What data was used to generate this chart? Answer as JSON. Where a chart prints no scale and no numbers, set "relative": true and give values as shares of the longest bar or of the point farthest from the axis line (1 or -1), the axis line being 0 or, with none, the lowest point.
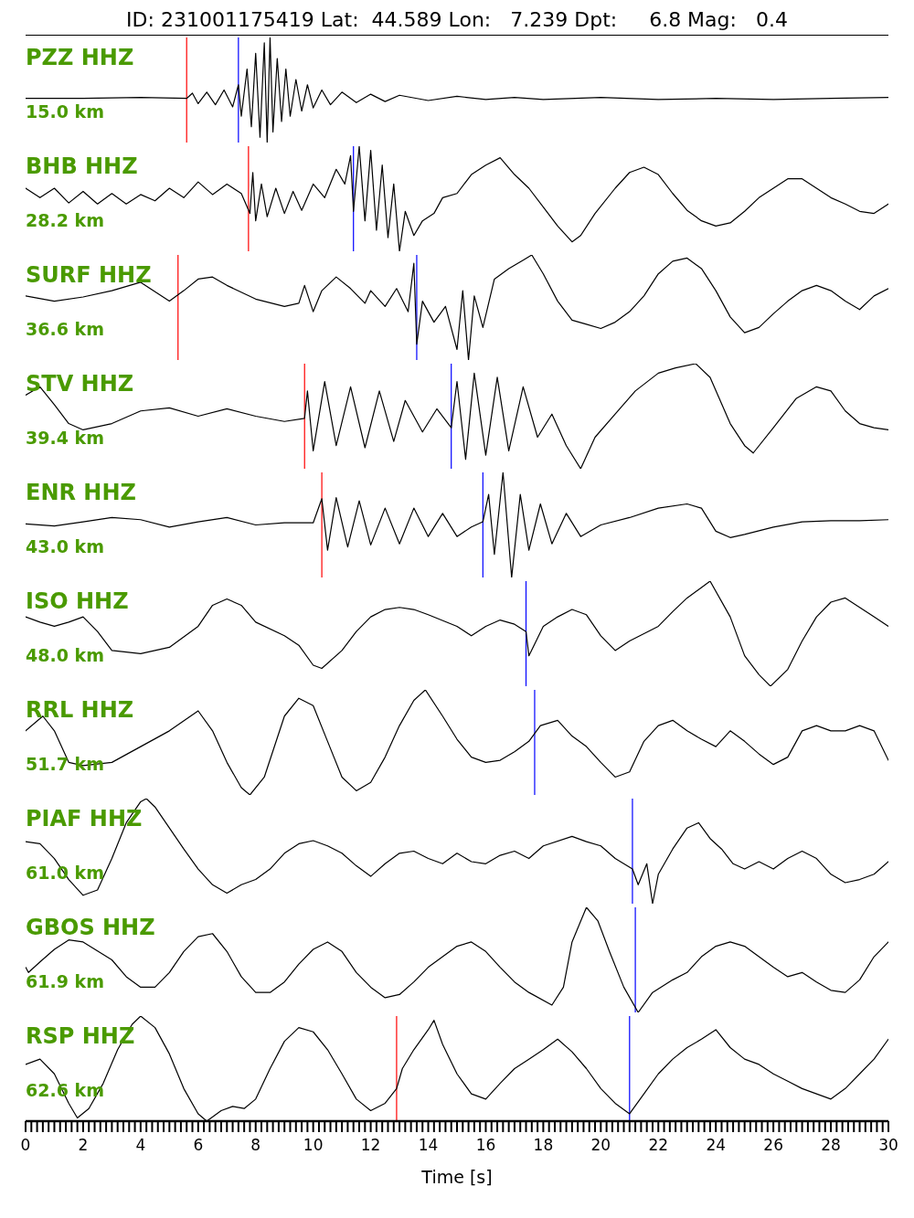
{
  "chart_data": [
    {
      "type": "line",
      "title": "ID: 231001175419 Lat:  44.589 Lon:   7.239 Dpt:     6.8 Mag:   0.4",
      "annotations": [
        "PZZ HHZ",
        "15.0 km"
      ],
      "relative": true,
      "color": "#000000",
      "xlim": [
        0,
        30
      ],
      "tick_labels": false,
      "ref_lines": [
        {
          "axis": "x",
          "value": 5.6,
          "color": "#ff0000"
        },
        {
          "axis": "x",
          "value": 7.4,
          "color": "#0000ff"
        }
      ],
      "x": [
        0,
        2,
        4,
        5.6,
        5.8,
        6.0,
        6.3,
        6.6,
        6.9,
        7.2,
        7.4,
        7.5,
        7.7,
        7.85,
        8.0,
        8.15,
        8.3,
        8.4,
        8.5,
        8.6,
        8.75,
        8.9,
        9.05,
        9.2,
        9.4,
        9.6,
        9.8,
        10.0,
        10.3,
        10.6,
        11,
        11.5,
        12,
        12.5,
        13,
        14,
        15,
        16,
        17,
        18,
        20,
        22,
        24,
        26,
        28,
        30
      ],
      "values": [
        0.42,
        0.42,
        0.43,
        0.42,
        0.47,
        0.37,
        0.48,
        0.36,
        0.5,
        0.34,
        0.55,
        0.25,
        0.7,
        0.15,
        0.85,
        0.05,
        0.95,
        0,
        1,
        0.1,
        0.8,
        0.2,
        0.7,
        0.25,
        0.6,
        0.3,
        0.55,
        0.33,
        0.5,
        0.36,
        0.48,
        0.38,
        0.46,
        0.39,
        0.45,
        0.4,
        0.44,
        0.41,
        0.43,
        0.41,
        0.43,
        0.41,
        0.42,
        0.41,
        0.42,
        0.43
      ]
    },
    {
      "type": "line",
      "annotations": [
        "BHB HHZ",
        "28.2 km"
      ],
      "relative": true,
      "color": "#000000",
      "xlim": [
        0,
        30
      ],
      "tick_labels": false,
      "ref_lines": [
        {
          "axis": "x",
          "value": 7.75,
          "color": "#ff0000"
        },
        {
          "axis": "x",
          "value": 11.4,
          "color": "#0000ff"
        }
      ],
      "x": [
        0,
        0.5,
        1,
        1.5,
        2,
        2.5,
        3,
        3.5,
        4,
        4.5,
        5,
        5.5,
        6,
        6.5,
        7,
        7.5,
        7.8,
        7.9,
        8.0,
        8.2,
        8.4,
        8.7,
        9.0,
        9.3,
        9.6,
        10,
        10.4,
        10.8,
        11.1,
        11.3,
        11.4,
        11.6,
        11.8,
        12,
        12.2,
        12.4,
        12.6,
        12.8,
        13.0,
        13.2,
        13.5,
        13.8,
        14.2,
        14.5,
        15,
        15.5,
        16,
        16.5,
        17,
        17.5,
        18,
        18.5,
        19,
        19.3,
        19.8,
        20.5,
        21,
        21.5,
        22,
        22.5,
        23,
        23.5,
        24,
        24.5,
        25,
        25.5,
        26,
        26.5,
        27,
        27.5,
        28,
        28.5,
        29,
        29.5,
        30
      ],
      "values": [
        0.6,
        0.51,
        0.6,
        0.46,
        0.57,
        0.45,
        0.55,
        0.45,
        0.54,
        0.48,
        0.6,
        0.51,
        0.66,
        0.54,
        0.64,
        0.55,
        0.36,
        0.75,
        0.29,
        0.64,
        0.33,
        0.6,
        0.36,
        0.57,
        0.39,
        0.64,
        0.51,
        0.78,
        0.64,
        0.91,
        0.38,
        1,
        0.29,
        0.96,
        0.2,
        0.82,
        0.13,
        0.64,
        0,
        0.38,
        0.15,
        0.29,
        0.36,
        0.51,
        0.55,
        0.73,
        0.82,
        0.89,
        0.73,
        0.6,
        0.42,
        0.24,
        0.09,
        0.15,
        0.36,
        0.6,
        0.75,
        0.8,
        0.73,
        0.55,
        0.39,
        0.29,
        0.24,
        0.27,
        0.38,
        0.51,
        0.6,
        0.69,
        0.69,
        0.6,
        0.51,
        0.45,
        0.38,
        0.36,
        0.45
      ]
    },
    {
      "type": "line",
      "annotations": [
        "SURF HHZ",
        "36.6 km"
      ],
      "relative": true,
      "color": "#000000",
      "xlim": [
        0,
        30
      ],
      "tick_labels": false,
      "ref_lines": [
        {
          "axis": "x",
          "value": 5.3,
          "color": "#ff0000"
        },
        {
          "axis": "x",
          "value": 13.6,
          "color": "#0000ff"
        }
      ],
      "x": [
        0,
        1,
        2,
        3,
        4,
        5,
        5.5,
        6,
        6.5,
        7,
        8,
        9,
        9.5,
        9.7,
        10,
        10.3,
        10.8,
        11.3,
        11.8,
        12,
        12.5,
        12.9,
        13.3,
        13.5,
        13.6,
        13.8,
        14.2,
        14.6,
        15,
        15.2,
        15.4,
        15.6,
        15.9,
        16.3,
        16.8,
        17.3,
        17.6,
        18,
        18.5,
        19,
        19.5,
        20,
        20.5,
        21,
        21.5,
        22,
        22.5,
        23,
        23.5,
        24,
        24.5,
        25,
        25.5,
        26,
        26.5,
        27,
        27.5,
        28,
        28.5,
        29,
        29.5,
        30
      ],
      "values": [
        0.61,
        0.56,
        0.6,
        0.66,
        0.74,
        0.56,
        0.66,
        0.77,
        0.79,
        0.71,
        0.58,
        0.51,
        0.54,
        0.71,
        0.46,
        0.66,
        0.79,
        0.68,
        0.54,
        0.66,
        0.51,
        0.68,
        0.46,
        0.92,
        0.15,
        0.56,
        0.36,
        0.51,
        0.1,
        0.66,
        0,
        0.61,
        0.31,
        0.77,
        0.87,
        0.95,
        1,
        0.82,
        0.56,
        0.38,
        0.34,
        0.3,
        0.36,
        0.46,
        0.61,
        0.82,
        0.94,
        0.97,
        0.87,
        0.66,
        0.41,
        0.26,
        0.31,
        0.44,
        0.56,
        0.66,
        0.71,
        0.66,
        0.56,
        0.48,
        0.61,
        0.68
      ]
    },
    {
      "type": "line",
      "annotations": [
        "STV HHZ",
        "39.4 km"
      ],
      "relative": true,
      "color": "#000000",
      "xlim": [
        0,
        30
      ],
      "tick_labels": false,
      "ref_lines": [
        {
          "axis": "x",
          "value": 9.7,
          "color": "#ff0000"
        },
        {
          "axis": "x",
          "value": 14.8,
          "color": "#0000ff"
        }
      ],
      "x": [
        0,
        0.5,
        1,
        1.5,
        2,
        3,
        4,
        5,
        6,
        7,
        8,
        9,
        9.7,
        9.8,
        10,
        10.4,
        10.8,
        11.3,
        11.8,
        12.3,
        12.8,
        13.2,
        13.8,
        14.3,
        14.8,
        15,
        15.3,
        15.6,
        16,
        16.4,
        16.8,
        17.3,
        17.8,
        18.3,
        18.8,
        19.3,
        19.8,
        20.5,
        21.2,
        22,
        22.6,
        23.3,
        23.8,
        24.5,
        25,
        25.3,
        26,
        26.8,
        27.5,
        28,
        28.5,
        29,
        29.5,
        30
      ],
      "values": [
        0.7,
        0.78,
        0.61,
        0.43,
        0.37,
        0.43,
        0.55,
        0.58,
        0.5,
        0.57,
        0.5,
        0.45,
        0.48,
        0.74,
        0.17,
        0.83,
        0.22,
        0.78,
        0.2,
        0.74,
        0.26,
        0.65,
        0.35,
        0.57,
        0.39,
        0.83,
        0.09,
        0.91,
        0.13,
        0.87,
        0.17,
        0.78,
        0.3,
        0.52,
        0.22,
        0,
        0.3,
        0.52,
        0.74,
        0.91,
        0.96,
        1,
        0.87,
        0.43,
        0.22,
        0.15,
        0.39,
        0.67,
        0.78,
        0.74,
        0.55,
        0.43,
        0.39,
        0.37
      ]
    },
    {
      "type": "line",
      "annotations": [
        "ENR HHZ",
        "43.0 km"
      ],
      "relative": true,
      "color": "#000000",
      "xlim": [
        0,
        30
      ],
      "tick_labels": false,
      "ref_lines": [
        {
          "axis": "x",
          "value": 10.3,
          "color": "#ff0000"
        },
        {
          "axis": "x",
          "value": 15.9,
          "color": "#0000ff"
        }
      ],
      "x": [
        0,
        1,
        2,
        3,
        4,
        5,
        6,
        7,
        8,
        9,
        10,
        10.3,
        10.5,
        10.8,
        11.2,
        11.6,
        12,
        12.5,
        13,
        13.5,
        14,
        14.5,
        15,
        15.5,
        15.9,
        16.1,
        16.3,
        16.6,
        16.9,
        17.2,
        17.5,
        17.9,
        18.3,
        18.8,
        19.3,
        20,
        21,
        22,
        23,
        23.5,
        24,
        24.5,
        25,
        26,
        27,
        28,
        29,
        30
      ],
      "values": [
        0.51,
        0.49,
        0.53,
        0.57,
        0.55,
        0.48,
        0.53,
        0.57,
        0.5,
        0.52,
        0.52,
        0.75,
        0.26,
        0.76,
        0.29,
        0.73,
        0.31,
        0.66,
        0.32,
        0.66,
        0.39,
        0.61,
        0.39,
        0.48,
        0.53,
        0.79,
        0.22,
        1,
        0,
        0.79,
        0.26,
        0.7,
        0.32,
        0.61,
        0.39,
        0.5,
        0.57,
        0.66,
        0.7,
        0.66,
        0.44,
        0.38,
        0.41,
        0.48,
        0.53,
        0.54,
        0.54,
        0.55
      ]
    },
    {
      "type": "line",
      "annotations": [
        "ISO HHZ",
        "48.0 km"
      ],
      "relative": true,
      "color": "#000000",
      "xlim": [
        0,
        30
      ],
      "tick_labels": false,
      "ref_lines": [
        {
          "axis": "x",
          "value": 17.4,
          "color": "#0000ff"
        }
      ],
      "x": [
        0,
        0.5,
        1,
        1.5,
        2,
        2.5,
        3,
        4,
        5,
        6,
        6.5,
        7,
        7.5,
        8,
        9,
        9.5,
        10,
        10.3,
        11,
        11.5,
        12,
        12.5,
        13,
        13.5,
        14,
        15,
        15.5,
        16,
        16.5,
        17,
        17.4,
        17.5,
        18,
        18.5,
        19,
        19.5,
        20,
        20.5,
        21,
        22,
        22.5,
        23,
        23.5,
        23.8,
        24.5,
        25,
        25.5,
        25.9,
        26.5,
        27,
        27.5,
        28,
        28.5,
        29,
        29.5,
        30
      ],
      "values": [
        0.66,
        0.61,
        0.57,
        0.61,
        0.66,
        0.52,
        0.34,
        0.31,
        0.37,
        0.57,
        0.77,
        0.83,
        0.77,
        0.61,
        0.48,
        0.39,
        0.2,
        0.17,
        0.34,
        0.52,
        0.66,
        0.73,
        0.75,
        0.73,
        0.68,
        0.57,
        0.48,
        0.57,
        0.63,
        0.59,
        0.52,
        0.29,
        0.57,
        0.66,
        0.73,
        0.68,
        0.48,
        0.34,
        0.43,
        0.57,
        0.71,
        0.84,
        0.94,
        1,
        0.66,
        0.29,
        0.11,
        0,
        0.16,
        0.43,
        0.66,
        0.8,
        0.84,
        0.75,
        0.66,
        0.57
      ]
    },
    {
      "type": "line",
      "annotations": [
        "RRL HHZ",
        "51.7 km"
      ],
      "relative": true,
      "color": "#000000",
      "xlim": [
        0,
        30
      ],
      "tick_labels": false,
      "ref_lines": [
        {
          "axis": "x",
          "value": 17.7,
          "color": "#0000ff"
        }
      ],
      "x": [
        0,
        0.6,
        1,
        1.5,
        2,
        3,
        4,
        5,
        6,
        6.5,
        7,
        7.5,
        7.8,
        8.3,
        9,
        9.5,
        10,
        10.5,
        11,
        11.5,
        12,
        12.5,
        13,
        13.5,
        13.9,
        14.5,
        15,
        15.5,
        16,
        16.5,
        17,
        17.5,
        17.9,
        18.5,
        19,
        19.5,
        20,
        20.5,
        21,
        21.5,
        22,
        22.5,
        23,
        23.5,
        24,
        24.5,
        25,
        25.5,
        26,
        26.5,
        27,
        27.5,
        28,
        28.5,
        29,
        29.5,
        30
      ],
      "values": [
        0.61,
        0.75,
        0.61,
        0.31,
        0.28,
        0.31,
        0.46,
        0.61,
        0.8,
        0.61,
        0.31,
        0.07,
        0,
        0.17,
        0.75,
        0.92,
        0.85,
        0.51,
        0.17,
        0.04,
        0.12,
        0.36,
        0.66,
        0.9,
        1,
        0.75,
        0.53,
        0.36,
        0.31,
        0.33,
        0.41,
        0.51,
        0.66,
        0.71,
        0.56,
        0.46,
        0.31,
        0.17,
        0.22,
        0.51,
        0.66,
        0.71,
        0.61,
        0.53,
        0.46,
        0.61,
        0.51,
        0.39,
        0.29,
        0.36,
        0.61,
        0.66,
        0.61,
        0.61,
        0.66,
        0.61,
        0.33
      ]
    },
    {
      "type": "line",
      "annotations": [
        "PIAF HHZ",
        "61.0 km"
      ],
      "relative": true,
      "color": "#000000",
      "xlim": [
        0,
        30
      ],
      "tick_labels": false,
      "ref_lines": [
        {
          "axis": "x",
          "value": 21.1,
          "color": "#0000ff"
        }
      ],
      "x": [
        0,
        0.5,
        1,
        1.5,
        2,
        2.5,
        3,
        3.5,
        4,
        4.2,
        4.5,
        5,
        5.5,
        6,
        6.5,
        7,
        7.5,
        8,
        8.5,
        9,
        9.5,
        10,
        10.5,
        11,
        11.5,
        12,
        12.5,
        13,
        13.5,
        14,
        14.5,
        15,
        15.5,
        16,
        16.5,
        17,
        17.5,
        18,
        19,
        19.5,
        20,
        20.5,
        21.1,
        21.3,
        21.6,
        21.8,
        22,
        22.5,
        23,
        23.4,
        23.8,
        24.2,
        24.6,
        25,
        25.5,
        26,
        26.5,
        27,
        27.5,
        28,
        28.5,
        29,
        29.5,
        30
      ],
      "values": [
        0.59,
        0.57,
        0.43,
        0.23,
        0.08,
        0.13,
        0.43,
        0.77,
        0.97,
        1,
        0.92,
        0.72,
        0.52,
        0.33,
        0.18,
        0.1,
        0.18,
        0.23,
        0.33,
        0.48,
        0.57,
        0.6,
        0.55,
        0.48,
        0.36,
        0.26,
        0.38,
        0.48,
        0.5,
        0.43,
        0.38,
        0.48,
        0.4,
        0.38,
        0.46,
        0.5,
        0.43,
        0.55,
        0.64,
        0.59,
        0.55,
        0.43,
        0.33,
        0.18,
        0.38,
        0,
        0.28,
        0.52,
        0.72,
        0.77,
        0.62,
        0.52,
        0.38,
        0.33,
        0.4,
        0.33,
        0.43,
        0.5,
        0.43,
        0.28,
        0.2,
        0.23,
        0.28,
        0.4
      ]
    },
    {
      "type": "line",
      "annotations": [
        "GBOS HHZ",
        "61.9 km"
      ],
      "relative": true,
      "color": "#000000",
      "xlim": [
        0,
        30
      ],
      "tick_labels": false,
      "ref_lines": [
        {
          "axis": "x",
          "value": 21.2,
          "color": "#0000ff"
        }
      ],
      "x": [
        0,
        0.1,
        0.5,
        1,
        1.5,
        2,
        3,
        3.5,
        4,
        4.5,
        5,
        5.5,
        6,
        6.5,
        7,
        7.5,
        8,
        8.5,
        9,
        9.5,
        10,
        10.5,
        11,
        11.5,
        12,
        12.5,
        13,
        13.5,
        14,
        14.5,
        15,
        15.5,
        16,
        16.5,
        17,
        17.5,
        18.3,
        18.7,
        19,
        19.5,
        19.9,
        20.3,
        20.8,
        21.3,
        21.8,
        22.5,
        23,
        23.5,
        24,
        24.5,
        25,
        25.5,
        26,
        26.5,
        27,
        27.5,
        28,
        28.5,
        29,
        29.5,
        30
      ],
      "values": [
        0.43,
        0.38,
        0.48,
        0.6,
        0.69,
        0.67,
        0.5,
        0.34,
        0.24,
        0.24,
        0.38,
        0.58,
        0.72,
        0.75,
        0.58,
        0.34,
        0.19,
        0.19,
        0.29,
        0.46,
        0.6,
        0.67,
        0.58,
        0.38,
        0.24,
        0.14,
        0.17,
        0.29,
        0.43,
        0.53,
        0.63,
        0.67,
        0.58,
        0.43,
        0.29,
        0.19,
        0.07,
        0.24,
        0.67,
        1,
        0.87,
        0.58,
        0.24,
        0,
        0.19,
        0.31,
        0.38,
        0.53,
        0.63,
        0.67,
        0.63,
        0.53,
        0.43,
        0.34,
        0.38,
        0.29,
        0.21,
        0.19,
        0.31,
        0.53,
        0.67
      ]
    },
    {
      "type": "line",
      "annotations": [
        "RSP HHZ",
        "62.6 km"
      ],
      "relative": true,
      "color": "#000000",
      "xlim": [
        0,
        30
      ],
      "tick_labels": "x",
      "xlabel": "Time [s]",
      "ref_lines": [
        {
          "axis": "x",
          "value": 12.9,
          "color": "#ff0000"
        },
        {
          "axis": "x",
          "value": 21.0,
          "color": "#0000ff"
        }
      ],
      "xticks": [
        0,
        {
          "value": 0.2,
          "label": null
        },
        {
          "value": 0.4,
          "label": null
        },
        {
          "value": 0.6,
          "label": null
        },
        {
          "value": 0.8,
          "label": null
        },
        {
          "value": 1,
          "label": null
        },
        {
          "value": 1.2,
          "label": null
        },
        {
          "value": 1.4,
          "label": null
        },
        {
          "value": 1.6,
          "label": null
        },
        {
          "value": 1.8,
          "label": null
        },
        2,
        {
          "value": 2.2,
          "label": null
        },
        {
          "value": 2.4,
          "label": null
        },
        {
          "value": 2.6,
          "label": null
        },
        {
          "value": 2.8,
          "label": null
        },
        {
          "value": 3,
          "label": null
        },
        {
          "value": 3.2,
          "label": null
        },
        {
          "value": 3.4,
          "label": null
        },
        {
          "value": 3.6,
          "label": null
        },
        {
          "value": 3.8,
          "label": null
        },
        4,
        {
          "value": 4.2,
          "label": null
        },
        {
          "value": 4.4,
          "label": null
        },
        {
          "value": 4.6,
          "label": null
        },
        {
          "value": 4.8,
          "label": null
        },
        {
          "value": 5,
          "label": null
        },
        {
          "value": 5.2,
          "label": null
        },
        {
          "value": 5.4,
          "label": null
        },
        {
          "value": 5.6,
          "label": null
        },
        {
          "value": 5.8,
          "label": null
        },
        6,
        {
          "value": 6.2,
          "label": null
        },
        {
          "value": 6.4,
          "label": null
        },
        {
          "value": 6.6,
          "label": null
        },
        {
          "value": 6.8,
          "label": null
        },
        {
          "value": 7,
          "label": null
        },
        {
          "value": 7.2,
          "label": null
        },
        {
          "value": 7.4,
          "label": null
        },
        {
          "value": 7.6,
          "label": null
        },
        {
          "value": 7.8,
          "label": null
        },
        8,
        {
          "value": 8.2,
          "label": null
        },
        {
          "value": 8.4,
          "label": null
        },
        {
          "value": 8.6,
          "label": null
        },
        {
          "value": 8.8,
          "label": null
        },
        {
          "value": 9,
          "label": null
        },
        {
          "value": 9.2,
          "label": null
        },
        {
          "value": 9.4,
          "label": null
        },
        {
          "value": 9.6,
          "label": null
        },
        {
          "value": 9.8,
          "label": null
        },
        10,
        {
          "value": 10.2,
          "label": null
        },
        {
          "value": 10.4,
          "label": null
        },
        {
          "value": 10.6,
          "label": null
        },
        {
          "value": 10.8,
          "label": null
        },
        {
          "value": 11,
          "label": null
        },
        {
          "value": 11.2,
          "label": null
        },
        {
          "value": 11.4,
          "label": null
        },
        {
          "value": 11.6,
          "label": null
        },
        {
          "value": 11.8,
          "label": null
        },
        12,
        {
          "value": 12.2,
          "label": null
        },
        {
          "value": 12.4,
          "label": null
        },
        {
          "value": 12.6,
          "label": null
        },
        {
          "value": 12.8,
          "label": null
        },
        {
          "value": 13,
          "label": null
        },
        {
          "value": 13.2,
          "label": null
        },
        {
          "value": 13.4,
          "label": null
        },
        {
          "value": 13.6,
          "label": null
        },
        {
          "value": 13.8,
          "label": null
        },
        14,
        {
          "value": 14.2,
          "label": null
        },
        {
          "value": 14.4,
          "label": null
        },
        {
          "value": 14.6,
          "label": null
        },
        {
          "value": 14.8,
          "label": null
        },
        {
          "value": 15,
          "label": null
        },
        {
          "value": 15.2,
          "label": null
        },
        {
          "value": 15.4,
          "label": null
        },
        {
          "value": 15.6,
          "label": null
        },
        {
          "value": 15.8,
          "label": null
        },
        16,
        {
          "value": 16.2,
          "label": null
        },
        {
          "value": 16.4,
          "label": null
        },
        {
          "value": 16.6,
          "label": null
        },
        {
          "value": 16.8,
          "label": null
        },
        {
          "value": 17,
          "label": null
        },
        {
          "value": 17.2,
          "label": null
        },
        {
          "value": 17.4,
          "label": null
        },
        {
          "value": 17.6,
          "label": null
        },
        {
          "value": 17.8,
          "label": null
        },
        18,
        {
          "value": 18.2,
          "label": null
        },
        {
          "value": 18.4,
          "label": null
        },
        {
          "value": 18.6,
          "label": null
        },
        {
          "value": 18.8,
          "label": null
        },
        {
          "value": 19,
          "label": null
        },
        {
          "value": 19.2,
          "label": null
        },
        {
          "value": 19.4,
          "label": null
        },
        {
          "value": 19.6,
          "label": null
        },
        {
          "value": 19.8,
          "label": null
        },
        20,
        {
          "value": 20.2,
          "label": null
        },
        {
          "value": 20.4,
          "label": null
        },
        {
          "value": 20.6,
          "label": null
        },
        {
          "value": 20.8,
          "label": null
        },
        {
          "value": 21,
          "label": null
        },
        {
          "value": 21.2,
          "label": null
        },
        {
          "value": 21.4,
          "label": null
        },
        {
          "value": 21.6,
          "label": null
        },
        {
          "value": 21.8,
          "label": null
        },
        22,
        {
          "value": 22.2,
          "label": null
        },
        {
          "value": 22.4,
          "label": null
        },
        {
          "value": 22.6,
          "label": null
        },
        {
          "value": 22.8,
          "label": null
        },
        {
          "value": 23,
          "label": null
        },
        {
          "value": 23.2,
          "label": null
        },
        {
          "value": 23.4,
          "label": null
        },
        {
          "value": 23.6,
          "label": null
        },
        {
          "value": 23.8,
          "label": null
        },
        24,
        {
          "value": 24.2,
          "label": null
        },
        {
          "value": 24.4,
          "label": null
        },
        {
          "value": 24.6,
          "label": null
        },
        {
          "value": 24.8,
          "label": null
        },
        {
          "value": 25,
          "label": null
        },
        {
          "value": 25.2,
          "label": null
        },
        {
          "value": 25.4,
          "label": null
        },
        {
          "value": 25.6,
          "label": null
        },
        {
          "value": 25.8,
          "label": null
        },
        26,
        {
          "value": 26.2,
          "label": null
        },
        {
          "value": 26.4,
          "label": null
        },
        {
          "value": 26.6,
          "label": null
        },
        {
          "value": 26.8,
          "label": null
        },
        {
          "value": 27,
          "label": null
        },
        {
          "value": 27.2,
          "label": null
        },
        {
          "value": 27.4,
          "label": null
        },
        {
          "value": 27.6,
          "label": null
        },
        {
          "value": 27.8,
          "label": null
        },
        28,
        {
          "value": 28.2,
          "label": null
        },
        {
          "value": 28.4,
          "label": null
        },
        {
          "value": 28.6,
          "label": null
        },
        {
          "value": 28.8,
          "label": null
        },
        {
          "value": 29,
          "label": null
        },
        {
          "value": 29.2,
          "label": null
        },
        {
          "value": 29.4,
          "label": null
        },
        {
          "value": 29.6,
          "label": null
        },
        {
          "value": 29.8,
          "label": null
        },
        30
      ],
      "x": [
        0,
        0.5,
        1,
        1.5,
        1.8,
        2.2,
        2.7,
        3.2,
        3.7,
        4,
        4.5,
        5,
        5.5,
        6,
        6.3,
        6.8,
        7.2,
        7.6,
        8,
        8.5,
        9,
        9.5,
        10,
        10.5,
        11,
        11.5,
        12,
        12.5,
        12.9,
        13.1,
        13.5,
        14,
        14.2,
        14.5,
        15,
        15.5,
        16,
        16.5,
        17,
        17.5,
        18,
        18.5,
        19,
        19.5,
        20,
        20.5,
        21,
        21.5,
        22,
        22.5,
        23,
        23.5,
        24,
        24.5,
        25,
        25.5,
        26,
        26.5,
        27,
        27.5,
        28,
        28.5,
        29,
        29.5,
        30
      ],
      "values": [
        0.54,
        0.59,
        0.45,
        0.17,
        0.03,
        0.12,
        0.36,
        0.68,
        0.92,
        1,
        0.89,
        0.64,
        0.31,
        0.07,
        0,
        0.1,
        0.14,
        0.12,
        0.21,
        0.5,
        0.76,
        0.89,
        0.85,
        0.68,
        0.45,
        0.21,
        0.1,
        0.17,
        0.31,
        0.5,
        0.68,
        0.87,
        0.96,
        0.73,
        0.45,
        0.26,
        0.21,
        0.36,
        0.5,
        0.59,
        0.68,
        0.78,
        0.66,
        0.5,
        0.31,
        0.17,
        0.07,
        0.26,
        0.45,
        0.59,
        0.7,
        0.78,
        0.87,
        0.7,
        0.59,
        0.54,
        0.45,
        0.38,
        0.31,
        0.26,
        0.21,
        0.31,
        0.45,
        0.59,
        0.78
      ]
    }
  ]
}
